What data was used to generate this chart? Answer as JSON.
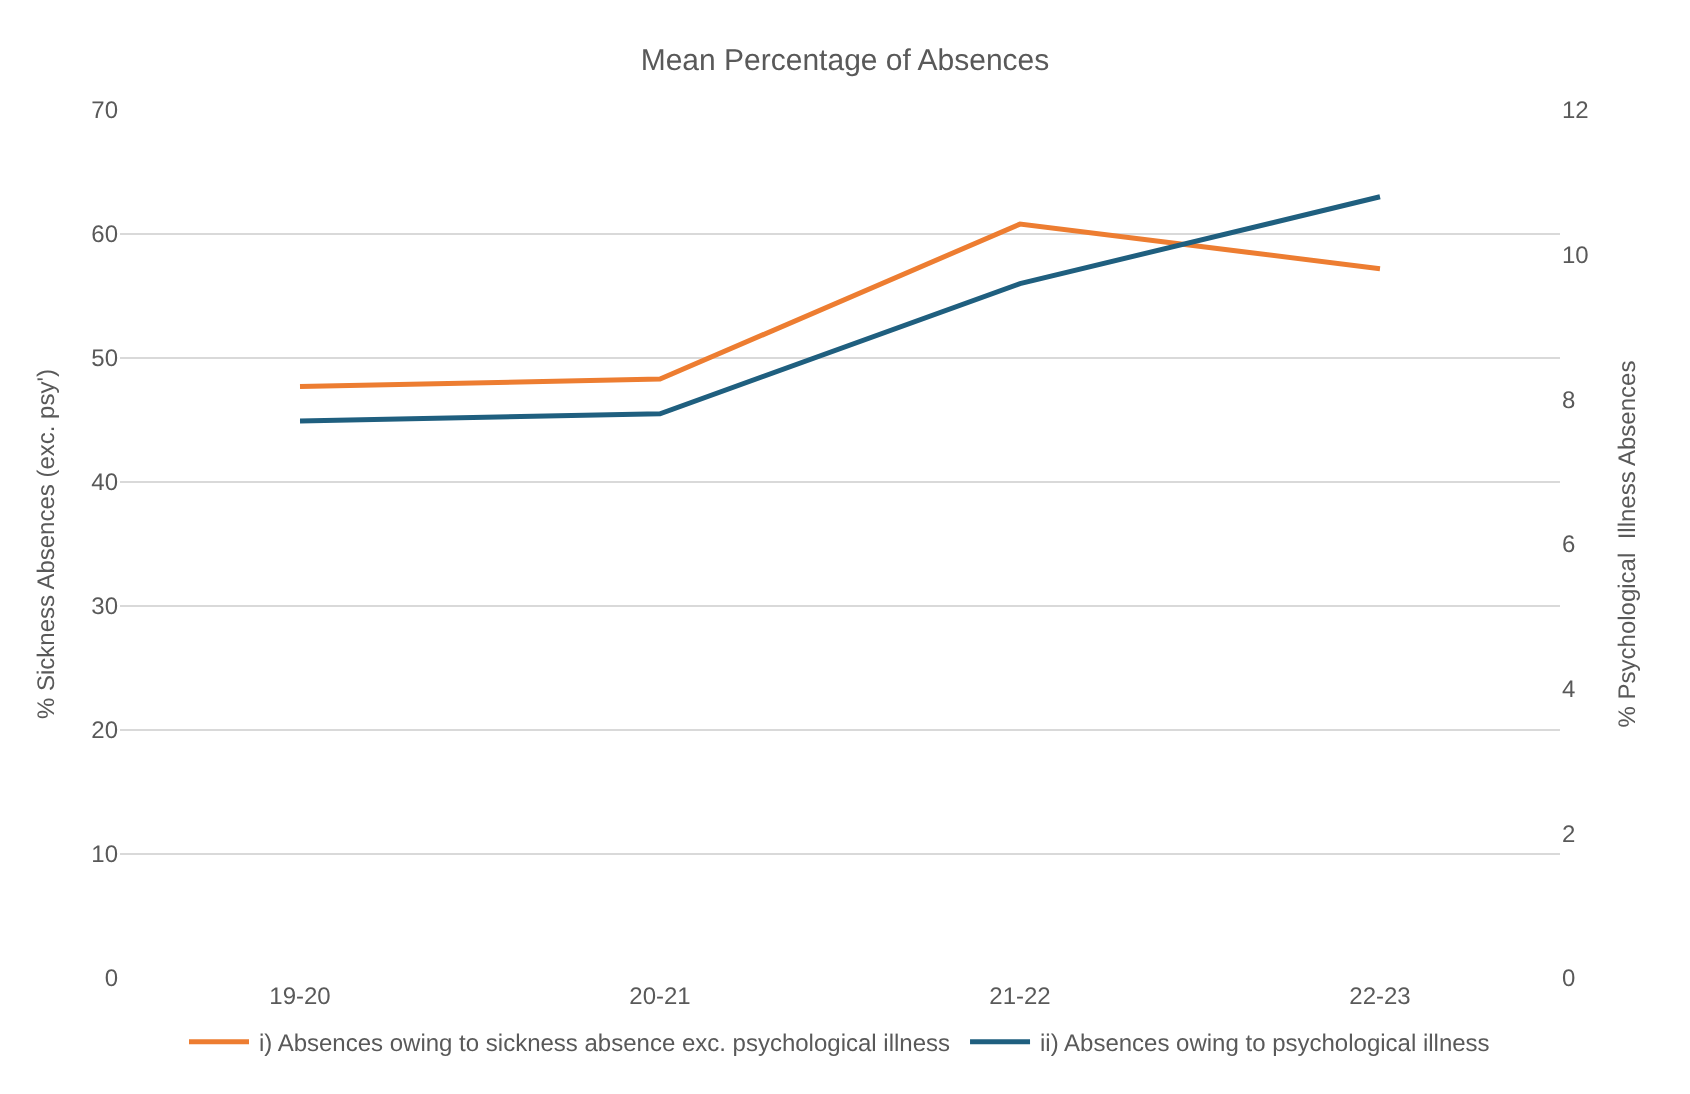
{
  "chart_data": {
    "type": "line",
    "title": "Mean Percentage of Absences",
    "ylabel": "% Sickness Absences (exc. psy')",
    "y2label": "% Psychological  Illness Absences",
    "categories": [
      "19-20",
      "20-21",
      "21-22",
      "22-23"
    ],
    "series": [
      {
        "name": "i) Absences owing to sickness absence exc. psychological illness",
        "color": "#ed7d31",
        "values": [
          47.7,
          48.3,
          60.8,
          57.2
        ]
      },
      {
        "name": "ii) Absences owing to psychological illness",
        "color": "#1f5f7f",
        "values": [
          7.7,
          7.8,
          9.6,
          10.8
        ],
        "axis": "y2"
      }
    ],
    "ylim": [
      0,
      70
    ],
    "yticks": [
      0,
      10,
      20,
      30,
      40,
      50,
      60,
      70
    ],
    "y2lim": [
      0,
      12
    ],
    "y2ticks": [
      0,
      2,
      4,
      6,
      8,
      10,
      12
    ],
    "grid": "y",
    "legend": "bottom",
    "marker": "none",
    "line_style": "solid"
  }
}
